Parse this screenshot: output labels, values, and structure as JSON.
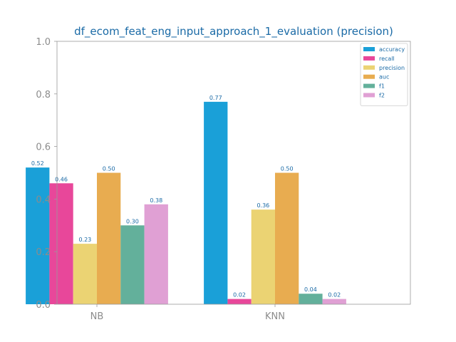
{
  "chart_data": {
    "type": "bar",
    "title": "df_ecom_feat_eng_input_approach_1_evaluation (precision)",
    "xlabel": "",
    "ylabel": "",
    "categories": [
      "NB",
      "KNN"
    ],
    "series": [
      {
        "name": "accuracy",
        "values": [
          0.52,
          0.77
        ],
        "labels": [
          "0.52",
          "0.77"
        ],
        "color": "#1aa0d8"
      },
      {
        "name": "recall",
        "values": [
          0.46,
          0.02
        ],
        "labels": [
          "0.46",
          "0.02"
        ],
        "color": "#e8479a"
      },
      {
        "name": "precision",
        "values": [
          0.23,
          0.36
        ],
        "labels": [
          "0.23",
          "0.36"
        ],
        "color": "#ebd373"
      },
      {
        "name": "auc",
        "values": [
          0.5,
          0.5
        ],
        "labels": [
          "0.50",
          "0.50"
        ],
        "color": "#e8ac50"
      },
      {
        "name": "f1",
        "values": [
          0.3,
          0.04
        ],
        "labels": [
          "0.30",
          "0.04"
        ],
        "color": "#63b09b"
      },
      {
        "name": "f2",
        "values": [
          0.38,
          0.02
        ],
        "labels": [
          "0.38",
          "0.02"
        ],
        "color": "#e0a0d4"
      }
    ],
    "ylim": [
      0.0,
      1.0
    ],
    "yticks": [
      "0.0",
      "0.2",
      "0.4",
      "0.6",
      "0.8",
      "1.0"
    ],
    "grid": false,
    "legend_position": "top-right"
  },
  "colors": {
    "text_accent": "#1a6aa6",
    "tick_text": "#8c8c8c",
    "axes_edge": "#9a9a9a"
  }
}
